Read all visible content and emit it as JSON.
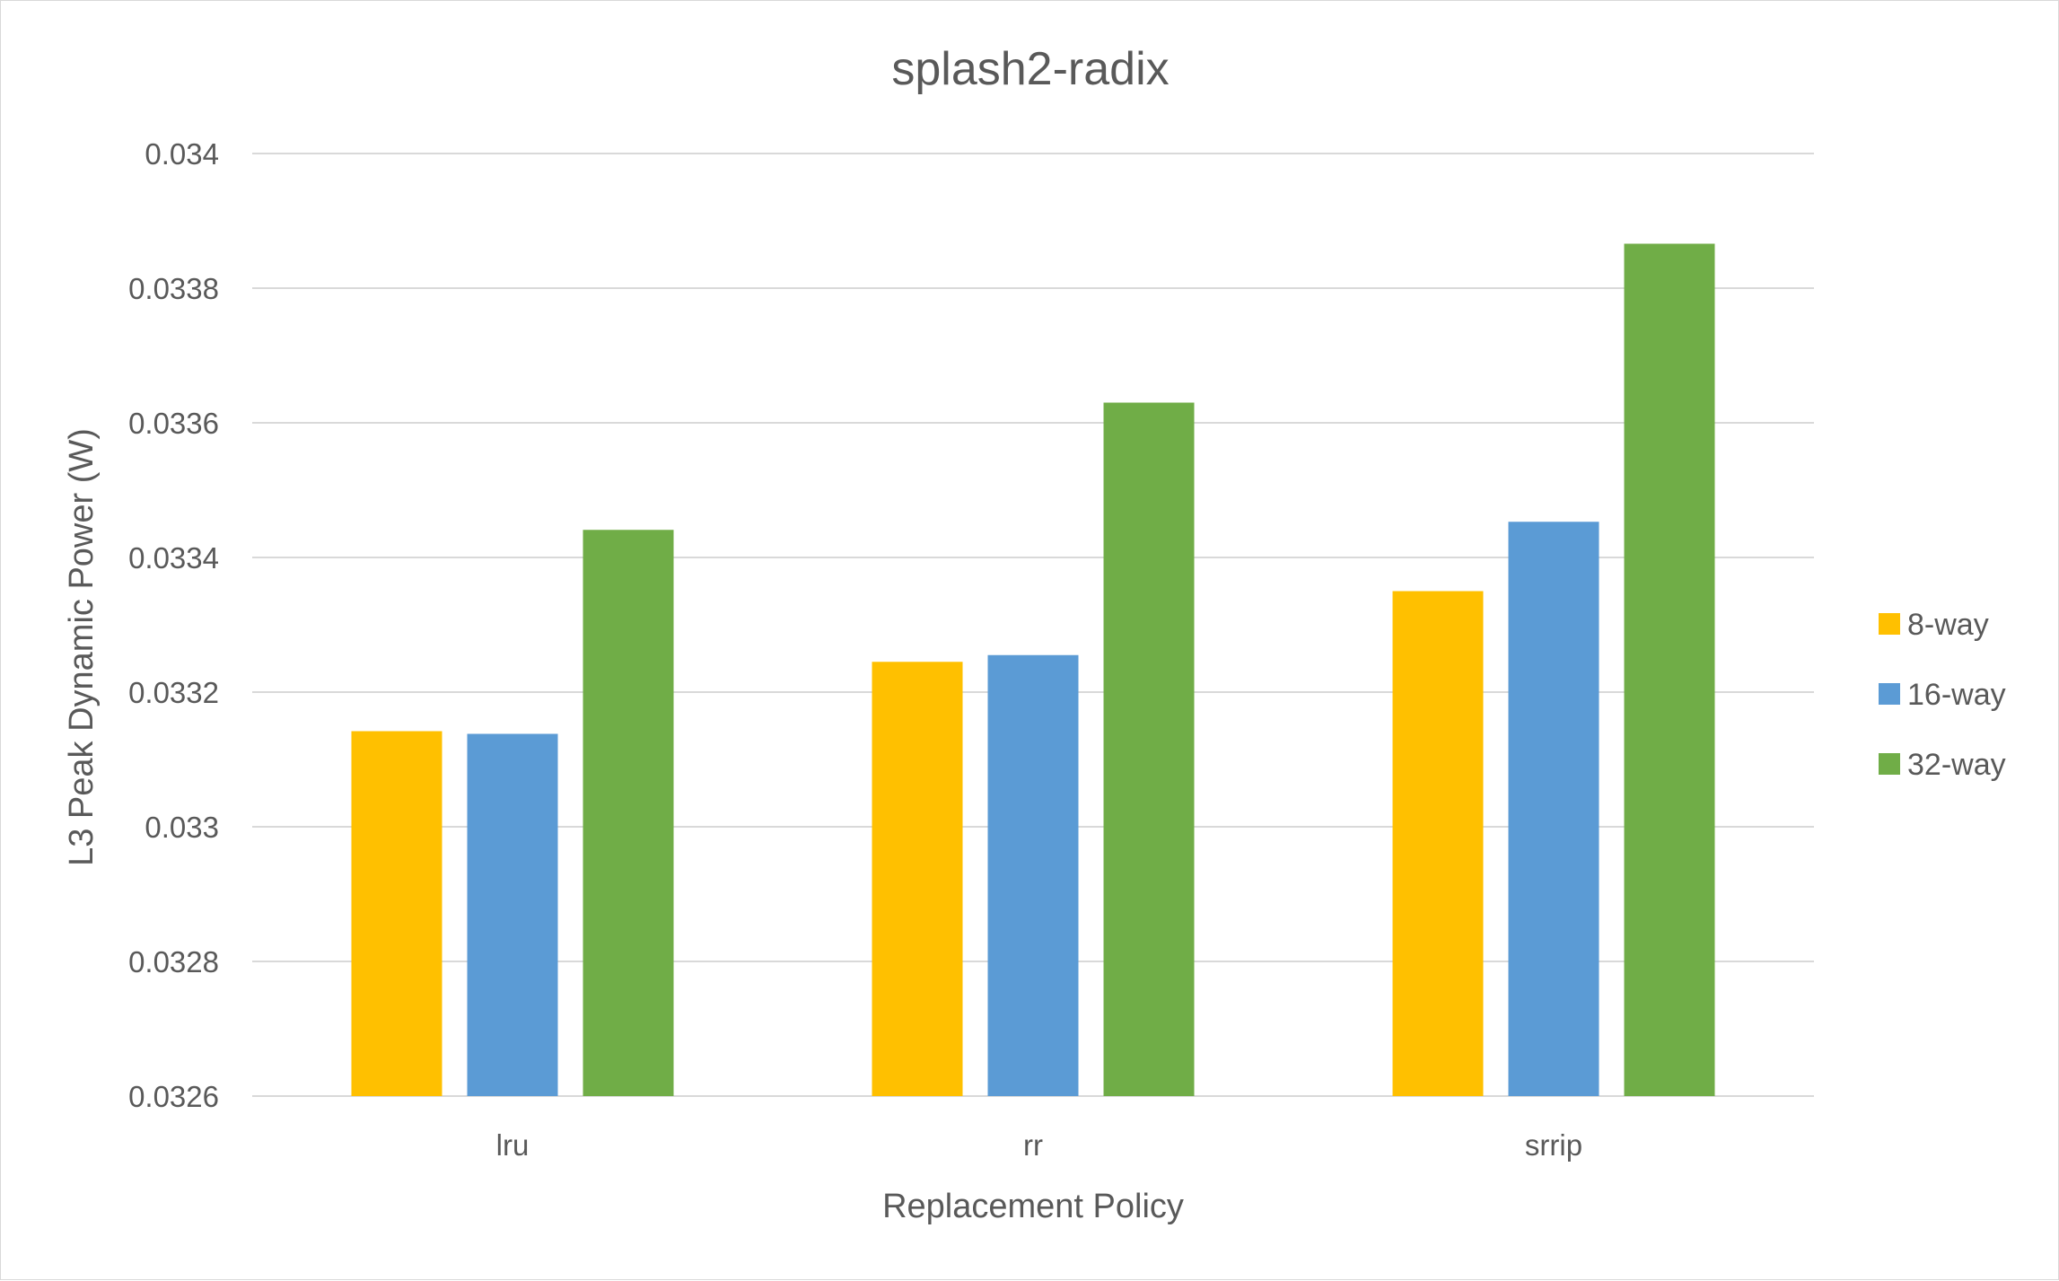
{
  "chart_data": {
    "type": "bar",
    "title": "splash2-radix",
    "xlabel": "Replacement Policy",
    "ylabel": "L3 Peak Dynamic Power (W)",
    "categories": [
      "lru",
      "rr",
      "srrip"
    ],
    "ylim": [
      0.0326,
      0.034
    ],
    "yticks": [
      0.0326,
      0.0328,
      0.033,
      0.0332,
      0.0334,
      0.0336,
      0.0338,
      0.034
    ],
    "ytick_labels": [
      "0.0326",
      "0.0328",
      "0.033",
      "0.0332",
      "0.0334",
      "0.0336",
      "0.0338",
      "0.034"
    ],
    "grid": "horizontal",
    "legend_position": "right",
    "series": [
      {
        "name": "8-way",
        "color": "#FFC000",
        "values": [
          0.033142,
          0.033245,
          0.03335
        ]
      },
      {
        "name": "16-way",
        "color": "#5B9BD5",
        "values": [
          0.033138,
          0.033255,
          0.033453
        ]
      },
      {
        "name": "32-way",
        "color": "#70AD47",
        "values": [
          0.033441,
          0.03363,
          0.033866
        ]
      }
    ]
  }
}
